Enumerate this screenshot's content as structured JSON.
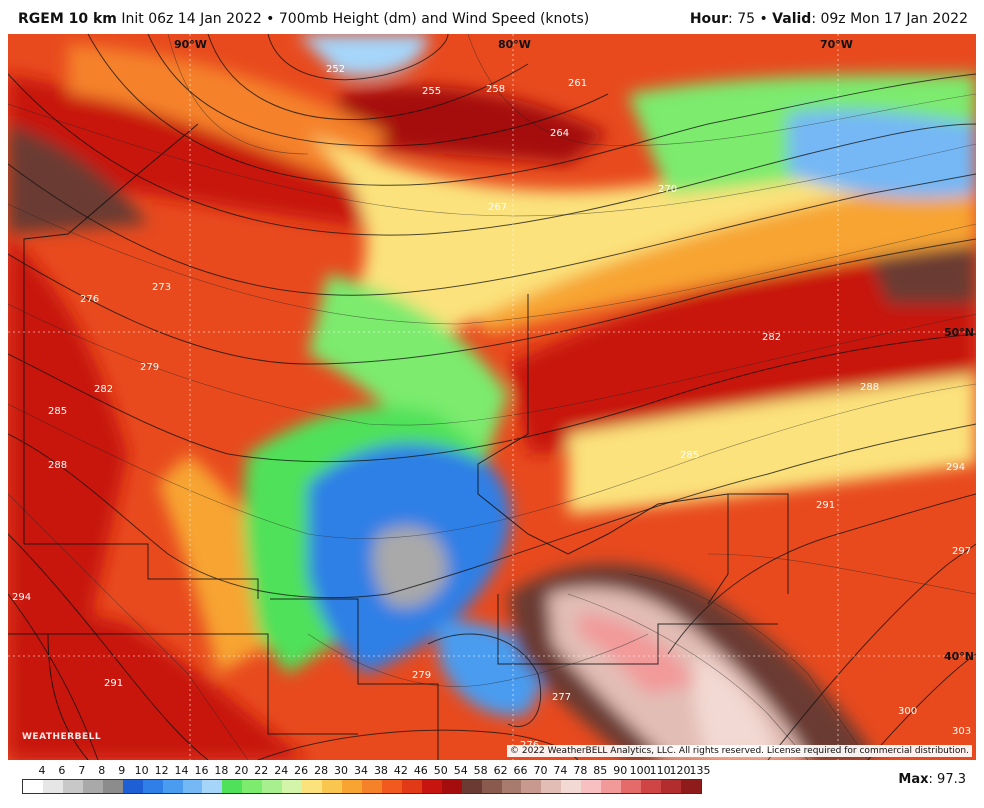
{
  "header": {
    "model": "RGEM 10 km",
    "run": "Init 06z 14 Jan 2022 • 700mb Height (dm) and Wind Speed (knots)",
    "hour_label": "Hour",
    "hour_value": ": 75 • ",
    "valid_label": "Valid",
    "valid_value": ": 09z Mon 17 Jan 2022"
  },
  "map": {
    "lon_labels": [
      "90°W",
      "80°W",
      "70°W"
    ],
    "lat_labels": [
      "50°N",
      "40°N"
    ],
    "contour_labels": [
      "252",
      "255",
      "258",
      "261",
      "264",
      "267",
      "270",
      "273",
      "276",
      "279",
      "282",
      "285",
      "288",
      "291",
      "294",
      "279",
      "276",
      "282",
      "285",
      "288",
      "291",
      "294",
      "297",
      "300",
      "303",
      "277"
    ],
    "copyright": "© 2022 WeatherBELL Analytics, LLC. All rights reserved. License required for commercial distribution.",
    "logo_text": "WEATHERBELL"
  },
  "legend": {
    "ticks": [
      "4",
      "6",
      "7",
      "8",
      "9",
      "10",
      "12",
      "14",
      "16",
      "18",
      "20",
      "22",
      "24",
      "26",
      "28",
      "30",
      "34",
      "38",
      "42",
      "46",
      "50",
      "54",
      "58",
      "62",
      "66",
      "70",
      "74",
      "78",
      "85",
      "90",
      "100",
      "110",
      "120",
      "135"
    ],
    "colors": [
      "#ffffff",
      "#e6e6e6",
      "#c8c8c8",
      "#a9a9a9",
      "#8c8c8c",
      "#1f5fd6",
      "#2f7fe6",
      "#4a9cf0",
      "#74b8f5",
      "#a5d6fa",
      "#4fe15a",
      "#7ceb6e",
      "#a8f08f",
      "#d2f5a9",
      "#fbe27c",
      "#f9c64f",
      "#f7a432",
      "#f58229",
      "#f05a1f",
      "#e23a16",
      "#c8140f",
      "#a50d0d",
      "#6b3b33",
      "#8a5a4e",
      "#a87b6f",
      "#c89a8f",
      "#e2bdb5",
      "#f3d9d3",
      "#f8c0c0",
      "#f29a9a",
      "#e56b6b",
      "#cf4545",
      "#b22d2d",
      "#8f1b1b"
    ]
  },
  "max": {
    "label": "Max",
    "value": ": 97.3"
  }
}
